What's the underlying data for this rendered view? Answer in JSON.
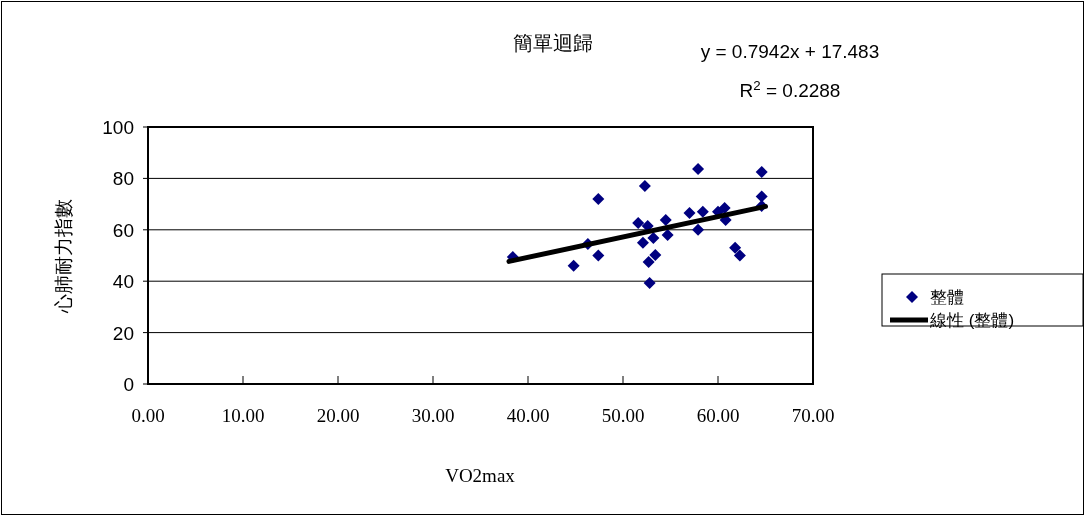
{
  "chart_data": {
    "type": "scatter",
    "title": "簡單迴歸",
    "xlabel": "VO2max",
    "ylabel": "心肺耐力指數",
    "annotations": [
      "y = 0.7942x + 17.483",
      "R$^{2}$ = 0.2288"
    ],
    "xlim": [
      0,
      70
    ],
    "xticks": [
      {
        "value": 0,
        "label": "0.00"
      },
      {
        "value": 10,
        "label": "10.00"
      },
      {
        "value": 20,
        "label": "20.00"
      },
      {
        "value": 30,
        "label": "30.00"
      },
      {
        "value": 40,
        "label": "40.00"
      },
      {
        "value": 50,
        "label": "50.00"
      },
      {
        "value": 60,
        "label": "60.00"
      },
      {
        "value": 70,
        "label": "70.00"
      }
    ],
    "ylim": [
      0,
      100
    ],
    "yticks": [
      0,
      20,
      40,
      60,
      80,
      100
    ],
    "grid": "y",
    "legend": "right",
    "marker": "diamond",
    "series": [
      {
        "name": "整體",
        "color": "#000080",
        "x": [
          38.4,
          44.8,
          46.3,
          47.4,
          47.4,
          52.3,
          51.6,
          52.1,
          52.6,
          52.7,
          53.2,
          52.8,
          53.4,
          54.5,
          54.7,
          57,
          57.9,
          57.9,
          58.4,
          60,
          60.7,
          60.8,
          61.8,
          62.3,
          64.6,
          64.6,
          64.6
        ],
        "values": [
          49.4,
          46,
          54.5,
          72,
          50,
          77,
          62.6,
          55,
          61.5,
          47.5,
          56.8,
          39.3,
          50.2,
          63.8,
          58,
          66.5,
          83.7,
          60,
          67,
          67,
          68.5,
          63.8,
          53,
          50,
          82.5,
          73,
          69.3
        ]
      },
      {
        "name": "線性 (整體)",
        "type": "line",
        "color": "#000000",
        "marker": "none",
        "x": [
          38,
          65
        ],
        "values": [
          47.7,
          69.1
        ]
      }
    ]
  }
}
